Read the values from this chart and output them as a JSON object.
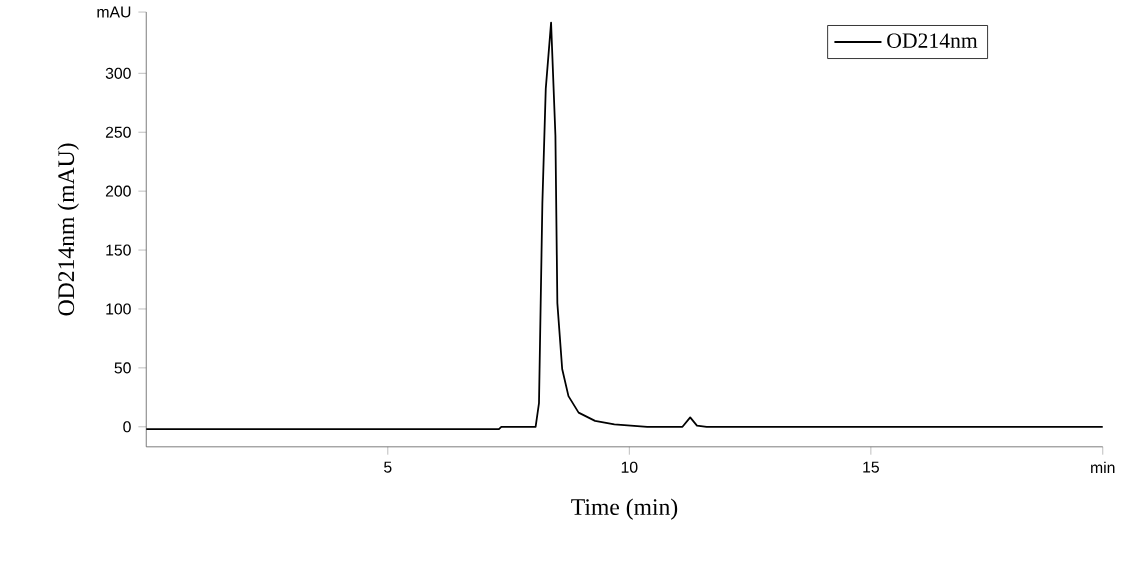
{
  "chart_data": {
    "type": "line",
    "xlabel": "Time (min)",
    "ylabel": "OD214nm (mAU)",
    "x": [
      0,
      7.3,
      7.35,
      8.06,
      8.13,
      8.2,
      8.27,
      8.38,
      8.47,
      8.51,
      8.61,
      8.74,
      8.95,
      9.29,
      9.69,
      10.37,
      11.1,
      11.26,
      11.4,
      11.6,
      19.8
    ],
    "series": [
      {
        "name": "OD214nm",
        "color": "#000000",
        "values": [
          -2,
          -2,
          0,
          0,
          20,
          190,
          287,
          343,
          247,
          105,
          49,
          26,
          12,
          5,
          2,
          0,
          0,
          8,
          1,
          0,
          0
        ]
      }
    ],
    "xlim": [
      0,
      19.8
    ],
    "ylim": [
      -17,
      352
    ],
    "xticks": [
      5,
      10,
      15,
      {
        "value": 19.8,
        "label": "min"
      }
    ],
    "yticks": [
      0,
      50,
      100,
      150,
      200,
      250,
      300,
      {
        "value": 352,
        "label": "mAU"
      }
    ],
    "legend": "top right",
    "grid": false,
    "marker": "none",
    "line_style": "solid"
  }
}
